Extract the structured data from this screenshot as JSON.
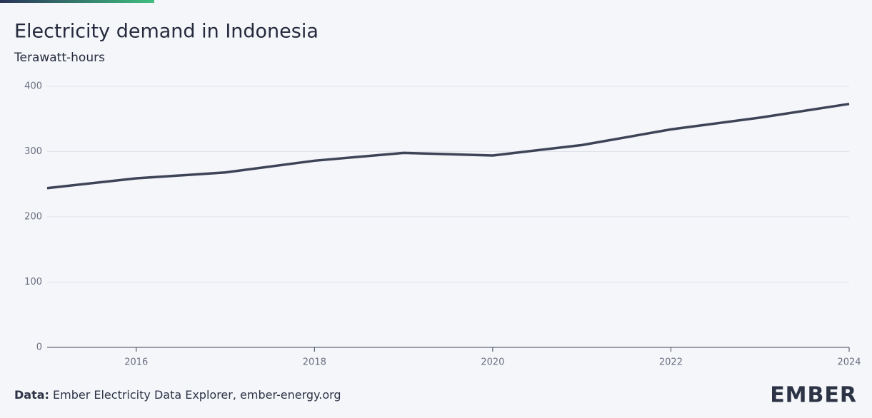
{
  "chart_data": {
    "type": "line",
    "title": "Electricity demand in Indonesia",
    "subtitle": "Terawatt-hours",
    "x": [
      2015,
      2016,
      2017,
      2018,
      2019,
      2020,
      2021,
      2022,
      2023,
      2024
    ],
    "values": [
      244,
      259,
      268,
      286,
      298,
      294,
      310,
      334,
      352,
      373
    ],
    "color": "#3e4457",
    "xlim": [
      2015,
      2024
    ],
    "xticks": [
      2016,
      2018,
      2020,
      2022,
      2024
    ],
    "ylim": [
      0,
      400
    ],
    "yticks": [
      0,
      100,
      200,
      300,
      400
    ],
    "grid": true
  },
  "footer": {
    "source_label": "Data:",
    "source": "Ember Electricity Data Explorer, ember-energy.org",
    "logo": "EMBER"
  }
}
